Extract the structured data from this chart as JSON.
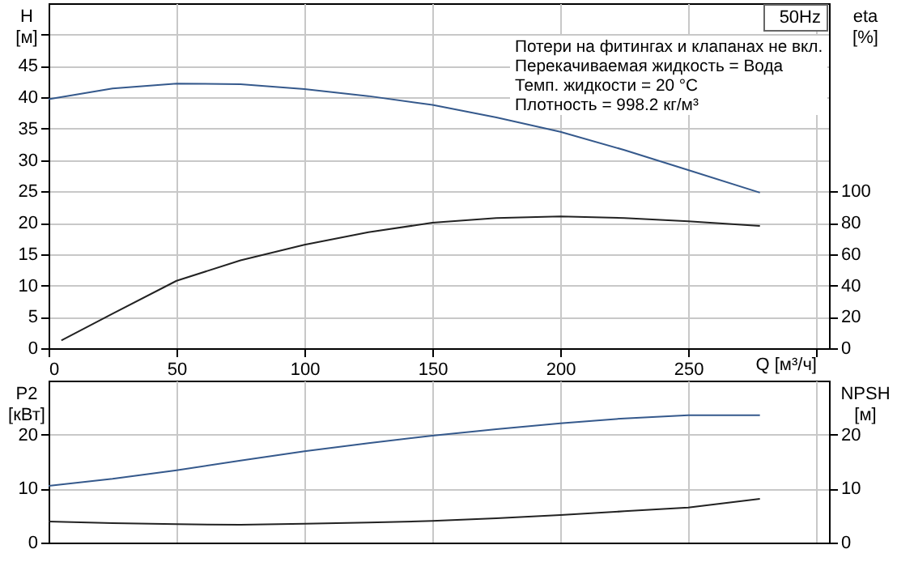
{
  "chart_data": [
    {
      "type": "line",
      "title": "50Hz",
      "xlabel": "Q [м³/ч]",
      "ylabel": "H [м]",
      "y2label": "eta [%]",
      "annotations": [
        "Потери на фитингах и клапанах не вкл.",
        "Перекачиваемая жидкость = Вода",
        "Темп. жидкости = 20 °C",
        "Плотность = 998.2 кг/м³"
      ],
      "xlim": [
        0,
        305
      ],
      "xticks": [
        0,
        50,
        100,
        150,
        200,
        250,
        {
          "value": 300,
          "label": null
        }
      ],
      "ylim": [
        0,
        55
      ],
      "yticks": [
        0,
        5,
        10,
        15,
        20,
        25,
        30,
        35,
        40,
        45,
        {
          "value": 50,
          "label": null
        }
      ],
      "y2lim": [
        0,
        220
      ],
      "y2ticks": [
        0,
        20,
        40,
        60,
        80,
        100
      ],
      "grid": true,
      "marker": "none",
      "line_style": "solid",
      "series": [
        {
          "color": "#35598c",
          "x": [
            0,
            25,
            50,
            75,
            100,
            125,
            150,
            175,
            200,
            225,
            250,
            278
          ],
          "values": [
            39.7,
            41.4,
            42.2,
            42.1,
            41.3,
            40.2,
            38.8,
            36.8,
            34.5,
            31.6,
            28.4,
            24.8
          ]
        },
        {
          "color": "#222222",
          "axis": "y2",
          "x": [
            5,
            25,
            50,
            75,
            100,
            125,
            150,
            175,
            200,
            225,
            250,
            278
          ],
          "values": [
            5,
            22,
            43,
            56,
            66,
            74,
            80,
            83,
            84,
            83,
            81,
            78
          ]
        }
      ]
    },
    {
      "type": "line",
      "ylabel": "P2 [кВт]",
      "y2label": "NPSH [м]",
      "tick_labels": "y",
      "xlim": [
        0,
        305
      ],
      "xticks": [
        0,
        50,
        100,
        150,
        200,
        250,
        300
      ],
      "ylim": [
        0,
        30
      ],
      "yticks": [
        0,
        10,
        20
      ],
      "y2lim": [
        0,
        30
      ],
      "y2ticks": [
        0,
        10,
        20
      ],
      "grid": true,
      "marker": "none",
      "line_style": "solid",
      "series": [
        {
          "color": "#35598c",
          "x": [
            0,
            25,
            50,
            75,
            100,
            125,
            150,
            175,
            200,
            225,
            250,
            278
          ],
          "values": [
            10.5,
            11.8,
            13.4,
            15.2,
            16.9,
            18.4,
            19.8,
            21,
            22.1,
            23,
            23.6,
            23.6
          ]
        },
        {
          "color": "#222222",
          "axis": "y2",
          "x": [
            0,
            25,
            50,
            75,
            100,
            125,
            150,
            175,
            200,
            225,
            250,
            278
          ],
          "values": [
            3.9,
            3.6,
            3.4,
            3.3,
            3.5,
            3.7,
            4,
            4.5,
            5.1,
            5.8,
            6.5,
            8.1
          ]
        }
      ]
    }
  ]
}
